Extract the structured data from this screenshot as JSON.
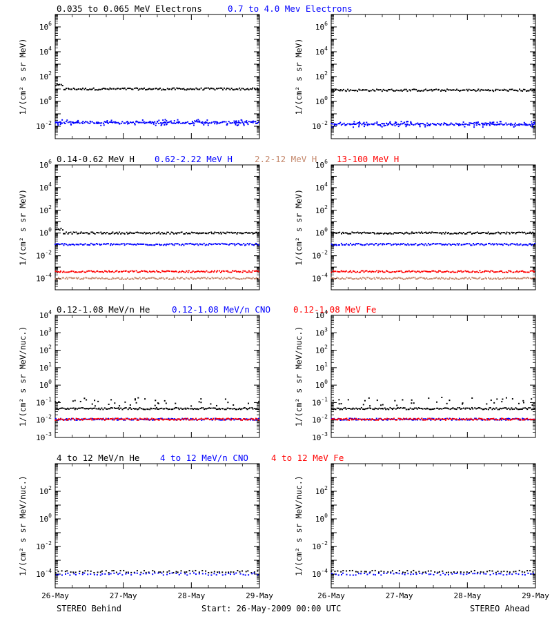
{
  "rows": [
    {
      "titles": [
        {
          "text": "0.035 to 0.065 MeV Electrons",
          "color": "#000000"
        },
        {
          "text": "0.7 to 4.0 Mev Electrons",
          "color": "#0000ff"
        }
      ],
      "ylabel": "1/(cm² s sr MeV)"
    },
    {
      "titles": [
        {
          "text": "0.14-0.62 MeV H",
          "color": "#000000"
        },
        {
          "text": "0.62-2.22 MeV H",
          "color": "#0000ff"
        },
        {
          "text": "2.2-12 MeV H",
          "color": "#c4876b"
        },
        {
          "text": "13-100 MeV H",
          "color": "#ff0000"
        }
      ],
      "ylabel": "1/(cm² s sr MeV)"
    },
    {
      "titles": [
        {
          "text": "0.12-1.08 MeV/n He",
          "color": "#000000"
        },
        {
          "text": "0.12-1.08 MeV/n CNO",
          "color": "#0000ff"
        },
        {
          "text": "0.12-1.08 MeV Fe",
          "color": "#ff0000"
        }
      ],
      "ylabel": "1/(cm² s sr MeV/nuc.)"
    },
    {
      "titles": [
        {
          "text": "4 to 12 MeV/n He",
          "color": "#000000"
        },
        {
          "text": "4 to 12 MeV/n CNO",
          "color": "#0000ff"
        },
        {
          "text": "4 to 12 MeV Fe",
          "color": "#ff0000"
        }
      ],
      "ylabel": "1/(cm² s sr MeV/nuc.)"
    }
  ],
  "footer": {
    "left": "STEREO Behind",
    "center": "Start: 26-May-2009 00:00 UTC",
    "right": "STEREO Ahead"
  },
  "chart_data": [
    {
      "type": "scatter",
      "row": 0,
      "column": "left",
      "title_ref": "STEREO Behind",
      "x_tick_labels": [
        "26-May",
        "27-May",
        "28-May",
        "29-May"
      ],
      "xlim_days": [
        0,
        3
      ],
      "y_scale": "log",
      "ylim_exp": [
        -3,
        7
      ],
      "y_tick_exps": [
        -2,
        0,
        2,
        4,
        6
      ],
      "series": [
        {
          "name": "0.035 to 0.065 MeV Electrons",
          "color": "#000000",
          "level": 10,
          "start_level": 20
        },
        {
          "name": "0.7 to 4.0 Mev Electrons",
          "color": "#0000ff",
          "level": 0.02
        }
      ]
    },
    {
      "type": "scatter",
      "row": 0,
      "column": "right",
      "title_ref": "STEREO Ahead",
      "x_tick_labels": [
        "26-May",
        "27-May",
        "28-May",
        "29-May"
      ],
      "xlim_days": [
        0,
        3
      ],
      "y_scale": "log",
      "ylim_exp": [
        -3,
        7
      ],
      "y_tick_exps": [
        -2,
        0,
        2,
        4,
        6
      ],
      "series": [
        {
          "name": "0.035 to 0.065 MeV Electrons",
          "color": "#000000",
          "level": 8
        },
        {
          "name": "0.7 to 4.0 Mev Electrons",
          "color": "#0000ff",
          "level": 0.015
        }
      ]
    },
    {
      "type": "scatter",
      "row": 1,
      "column": "left",
      "title_ref": "STEREO Behind",
      "x_tick_labels": [
        "26-May",
        "27-May",
        "28-May",
        "29-May"
      ],
      "xlim_days": [
        0,
        3
      ],
      "y_scale": "log",
      "ylim_exp": [
        -5,
        6
      ],
      "y_tick_exps": [
        -4,
        -2,
        0,
        2,
        4,
        6
      ],
      "series": [
        {
          "name": "0.14-0.62 MeV H",
          "color": "#000000",
          "level": 1.0,
          "start_level": 2.2
        },
        {
          "name": "0.62-2.22 MeV H",
          "color": "#0000ff",
          "level": 0.1
        },
        {
          "name": "2.2-12 MeV H",
          "color": "#c4876b",
          "level": 0.0001
        },
        {
          "name": "13-100 MeV H",
          "color": "#ff0000",
          "level": 0.0004
        }
      ]
    },
    {
      "type": "scatter",
      "row": 1,
      "column": "right",
      "title_ref": "STEREO Ahead",
      "x_tick_labels": [
        "26-May",
        "27-May",
        "28-May",
        "29-May"
      ],
      "xlim_days": [
        0,
        3
      ],
      "y_scale": "log",
      "ylim_exp": [
        -5,
        6
      ],
      "y_tick_exps": [
        -4,
        -2,
        0,
        2,
        4,
        6
      ],
      "series": [
        {
          "name": "0.14-0.62 MeV H",
          "color": "#000000",
          "level": 1.0
        },
        {
          "name": "0.62-2.22 MeV H",
          "color": "#0000ff",
          "level": 0.1
        },
        {
          "name": "2.2-12 MeV H",
          "color": "#c4876b",
          "level": 0.0001
        },
        {
          "name": "13-100 MeV H",
          "color": "#ff0000",
          "level": 0.0004
        }
      ]
    },
    {
      "type": "scatter",
      "row": 2,
      "column": "left",
      "title_ref": "STEREO Behind",
      "x_tick_labels": [
        "26-May",
        "27-May",
        "28-May",
        "29-May"
      ],
      "xlim_days": [
        0,
        3
      ],
      "y_scale": "log",
      "ylim_exp": [
        -3,
        4
      ],
      "y_tick_exps": [
        -3,
        -2,
        -1,
        0,
        1,
        2,
        3,
        4
      ],
      "series": [
        {
          "name": "0.12-1.08 MeV/n He",
          "color": "#000000",
          "level": 0.045,
          "sparse_level": 0.1
        },
        {
          "name": "0.12-1.08 MeV/n CNO",
          "color": "#0000ff",
          "level": 0.011
        },
        {
          "name": "0.12-1.08 MeV Fe",
          "color": "#ff0000",
          "level": 0.011
        }
      ]
    },
    {
      "type": "scatter",
      "row": 2,
      "column": "right",
      "title_ref": "STEREO Ahead",
      "x_tick_labels": [
        "26-May",
        "27-May",
        "28-May",
        "29-May"
      ],
      "xlim_days": [
        0,
        3
      ],
      "y_scale": "log",
      "ylim_exp": [
        -3,
        4
      ],
      "y_tick_exps": [
        -3,
        -2,
        -1,
        0,
        1,
        2,
        3,
        4
      ],
      "series": [
        {
          "name": "0.12-1.08 MeV/n He",
          "color": "#000000",
          "level": 0.045,
          "sparse_level": 0.1
        },
        {
          "name": "0.12-1.08 MeV/n CNO",
          "color": "#0000ff",
          "level": 0.011
        },
        {
          "name": "0.12-1.08 MeV Fe",
          "color": "#ff0000",
          "level": 0.011
        }
      ]
    },
    {
      "type": "scatter",
      "row": 3,
      "column": "left",
      "title_ref": "STEREO Behind",
      "x_tick_labels": [
        "26-May",
        "27-May",
        "28-May",
        "29-May"
      ],
      "xlim_days": [
        0,
        3
      ],
      "y_scale": "log",
      "ylim_exp": [
        -5,
        4
      ],
      "y_tick_exps": [
        -4,
        -2,
        0,
        2
      ],
      "series": [
        {
          "name": "4 to 12 MeV/n He",
          "color": "#000000",
          "level": 0.00015
        },
        {
          "name": "4 to 12 MeV/n CNO",
          "color": "#0000ff",
          "level": 0.0001
        },
        {
          "name": "4 to 12 MeV Fe",
          "color": "#ff0000",
          "level": null
        }
      ]
    },
    {
      "type": "scatter",
      "row": 3,
      "column": "right",
      "title_ref": "STEREO Ahead",
      "x_tick_labels": [
        "26-May",
        "27-May",
        "28-May",
        "29-May"
      ],
      "xlim_days": [
        0,
        3
      ],
      "y_scale": "log",
      "ylim_exp": [
        -5,
        4
      ],
      "y_tick_exps": [
        -4,
        -2,
        0,
        2
      ],
      "series": [
        {
          "name": "4 to 12 MeV/n He",
          "color": "#000000",
          "level": 0.00015
        },
        {
          "name": "4 to 12 MeV/n CNO",
          "color": "#0000ff",
          "level": 0.0001
        },
        {
          "name": "4 to 12 MeV Fe",
          "color": "#ff0000",
          "level": null
        }
      ]
    }
  ]
}
